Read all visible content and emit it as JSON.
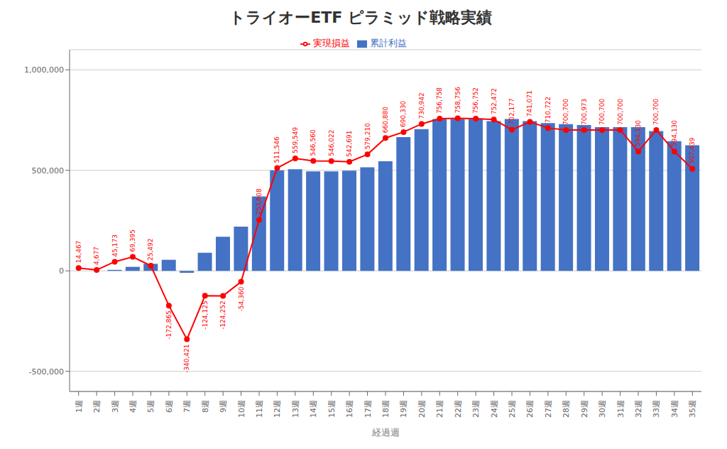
{
  "chart_data": {
    "type": "bar",
    "title": "トライオーETF ピラミッド戦略実績",
    "xlabel": "経過週",
    "categories": [
      "1週",
      "2週",
      "3週",
      "4週",
      "5週",
      "6週",
      "7週",
      "8週",
      "9週",
      "10週",
      "11週",
      "12週",
      "13週",
      "14週",
      "15週",
      "16週",
      "17週",
      "18週",
      "19週",
      "20週",
      "21週",
      "22週",
      "23週",
      "24週",
      "25週",
      "26週",
      "27週",
      "28週",
      "29週",
      "30週",
      "31週",
      "32週",
      "33週",
      "34週",
      "35週"
    ],
    "series": [
      {
        "name": "累計利益",
        "type": "bar",
        "color": "#4472C4",
        "values": [
          0,
          0,
          5000,
          20000,
          35000,
          55000,
          -10000,
          90000,
          170000,
          220000,
          370000,
          500000,
          505000,
          495000,
          495000,
          498000,
          515000,
          545000,
          665000,
          705000,
          755000,
          755000,
          755000,
          745000,
          755000,
          745000,
          735000,
          730000,
          725000,
          715000,
          715000,
          715000,
          695000,
          645000,
          625000
        ]
      },
      {
        "name": "実現損益",
        "type": "line",
        "color": "#FF0000",
        "marker": "circle",
        "data_labels": true,
        "values": [
          14467,
          4677,
          45173,
          69395,
          25492,
          -172865,
          -340421,
          -124125,
          -124252,
          -54360,
          253608,
          511546,
          559549,
          546560,
          546022,
          542691,
          579210,
          660880,
          690330,
          730942,
          756758,
          758756,
          756752,
          752472,
          702177,
          741071,
          710722,
          700700,
          700973,
          700700,
          700700,
          594130,
          700700,
          594130,
          507439
        ],
        "value_labels": [
          "14,467",
          "4,677",
          "45,173",
          "69,395",
          "25,492",
          "-172,865",
          "-340,421",
          "-124,125",
          "-124,252",
          "-54,360",
          "253,608",
          "511,546",
          "559,549",
          "546,560",
          "546,022",
          "542,691",
          "579,210",
          "660,880",
          "690,330",
          "730,942",
          "756,758",
          "758,756",
          "756,752",
          "752,472",
          "702,177",
          "741,071",
          "710,722",
          "700,700",
          "700,973",
          "700,700",
          "700,700",
          "594,130",
          "700,700",
          "594,130",
          "507,439"
        ]
      }
    ],
    "ylim": [
      -600000,
      1100000
    ],
    "yticks": [
      {
        "value": -500000,
        "label": "-500,000"
      },
      0,
      {
        "value": 500000,
        "label": "500,000"
      },
      {
        "value": 1000000,
        "label": "1,000,000"
      }
    ],
    "grid": true,
    "legend": "top"
  }
}
